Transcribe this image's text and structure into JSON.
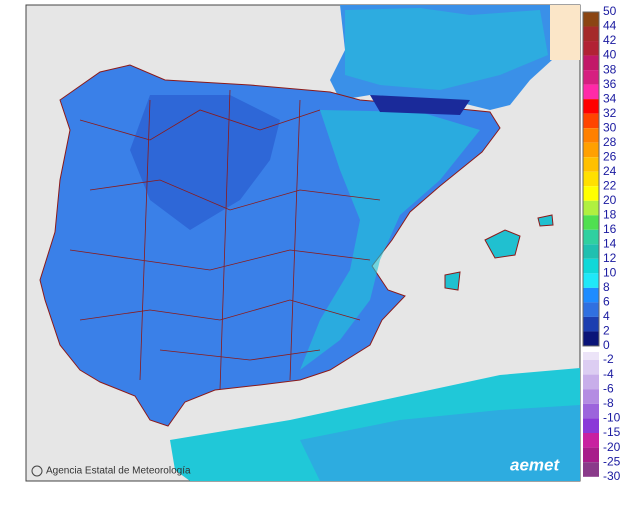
{
  "footer": {
    "credit": "Agencia Estatal de Meteorología",
    "logo": "aemet"
  },
  "colorbar": {
    "positive": {
      "labels": [
        50,
        44,
        42,
        40,
        38,
        36,
        34,
        32,
        30,
        28,
        26,
        24,
        22,
        20,
        18,
        16,
        14,
        12,
        10,
        8,
        6,
        4,
        2,
        0
      ],
      "colors": [
        "#8b4513",
        "#a52a2a",
        "#b22234",
        "#c21868",
        "#d62080",
        "#ff2aa8",
        "#ff0000",
        "#ff4500",
        "#ff8000",
        "#ffa000",
        "#ffc000",
        "#ffe000",
        "#ffff00",
        "#b0f040",
        "#50e050",
        "#30d0a0",
        "#20c0b0",
        "#10d8d8",
        "#20e8f8",
        "#1e8cff",
        "#3070e0",
        "#1c3eb0",
        "#0a1478"
      ]
    },
    "negative": {
      "labels": [
        -2,
        -4,
        -6,
        -8,
        -10,
        -15,
        -20,
        -25,
        -30
      ],
      "colors": [
        "#ece4f8",
        "#dccdf2",
        "#c8aeea",
        "#b48ce2",
        "#9c64dc",
        "#8a38d8",
        "#c820a0",
        "#a81c8a",
        "#8a3a8a"
      ]
    }
  }
}
